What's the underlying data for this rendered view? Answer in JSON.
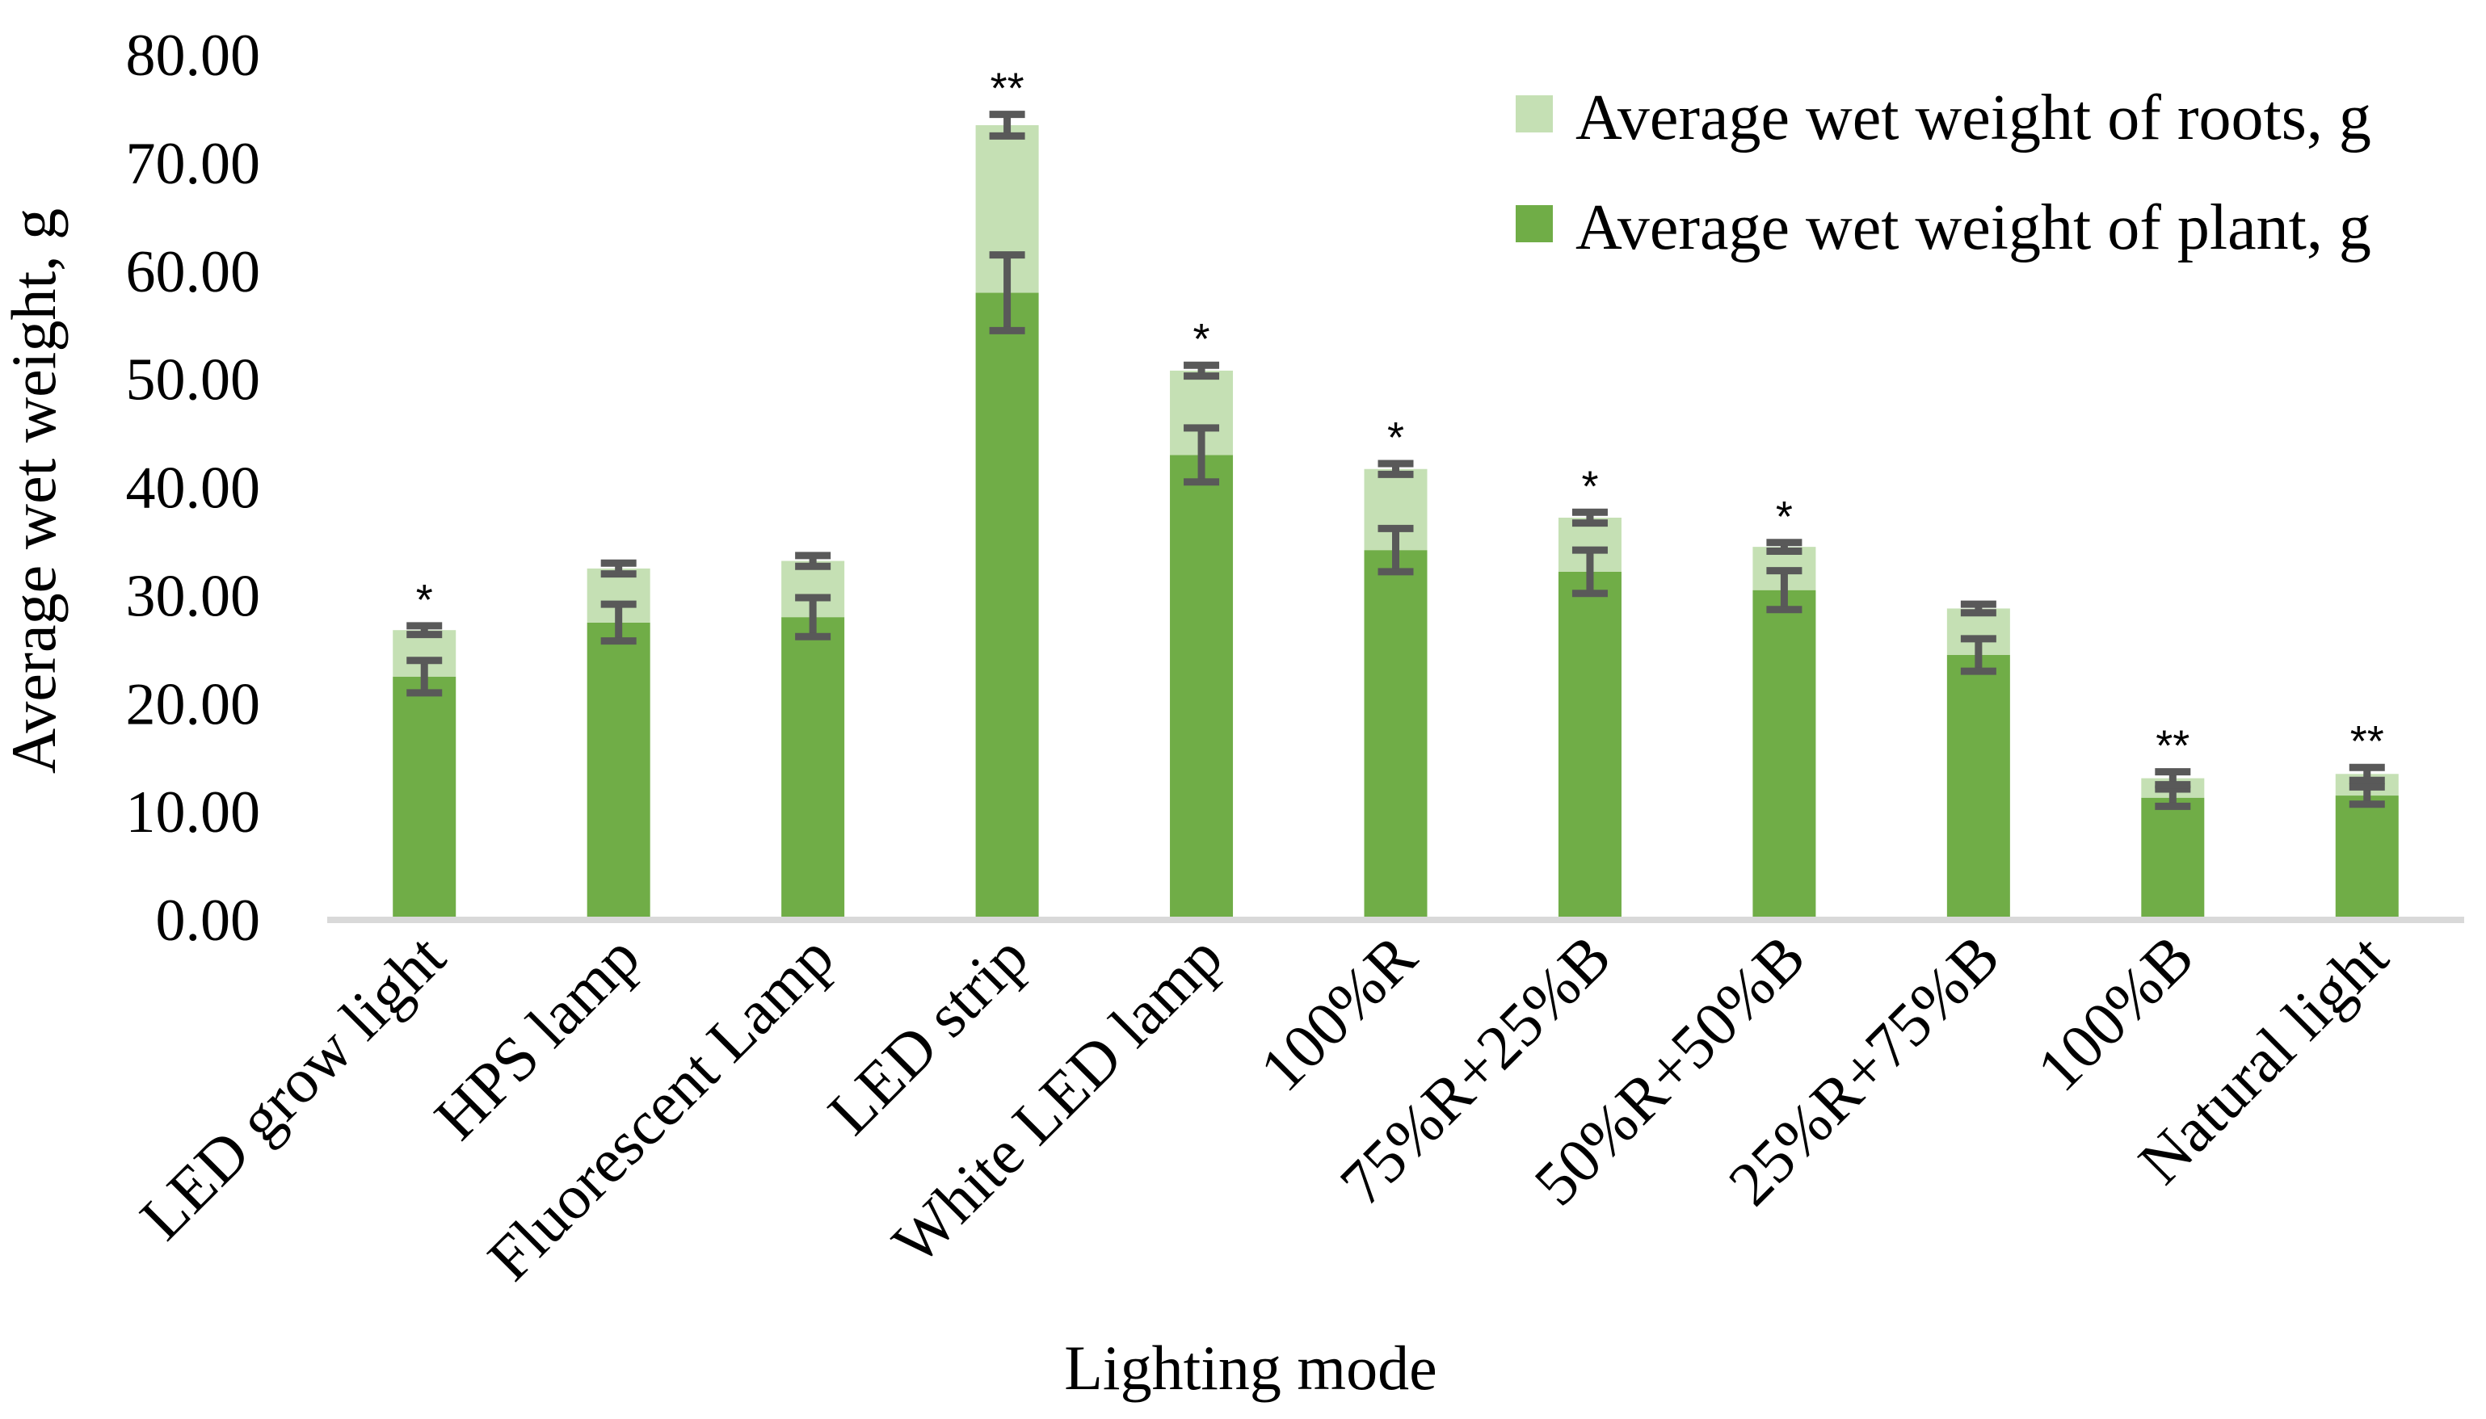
{
  "chart_data": {
    "type": "bar",
    "stacked": true,
    "title": "",
    "xlabel": "Lighting mode",
    "ylabel": "Average wet weight, g",
    "ylim": [
      0,
      80
    ],
    "yticks": [
      "0.00",
      "10.00",
      "20.00",
      "30.00",
      "40.00",
      "50.00",
      "60.00",
      "70.00",
      "80.00"
    ],
    "ytick_values": [
      0,
      10,
      20,
      30,
      40,
      50,
      60,
      70,
      80
    ],
    "grid": false,
    "legend_position": "top-right",
    "categories": [
      "LED grow light",
      "HPS lamp",
      "Fluorescent Lamp",
      "LED strip",
      "White LED lamp",
      "100%R",
      "75%R+25%B",
      "50%R+50%B",
      "25%R+75%B",
      "100%B",
      "Natural light"
    ],
    "series": [
      {
        "name": "Average wet weight of plant, g",
        "color": "#70ad47",
        "values": [
          22.5,
          27.5,
          28.0,
          58.0,
          43.0,
          34.2,
          32.2,
          30.5,
          24.5,
          11.3,
          11.5
        ],
        "errors": [
          1.5,
          1.7,
          1.8,
          3.5,
          2.5,
          2.0,
          2.0,
          1.8,
          1.5,
          0.8,
          0.8
        ]
      },
      {
        "name": "Average wet weight of roots, g",
        "color": "#c5e0b4",
        "values": [
          4.3,
          5.0,
          5.2,
          15.5,
          7.8,
          7.5,
          5.0,
          4.0,
          4.3,
          1.8,
          2.0
        ],
        "errors": [
          0.4,
          0.5,
          0.5,
          1.0,
          0.5,
          0.5,
          0.5,
          0.4,
          0.4,
          0.6,
          0.6
        ]
      }
    ],
    "significance": [
      "*",
      "",
      "",
      "**",
      "*",
      "*",
      "*",
      "*",
      "",
      "**",
      "**"
    ],
    "colors": {
      "axis": "#d9d9d9",
      "error_bar": "#595959",
      "text": "#000000"
    }
  }
}
